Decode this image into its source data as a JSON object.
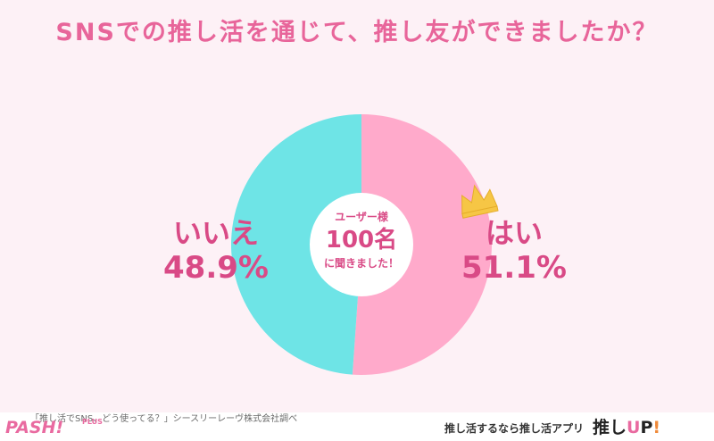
{
  "title": "SNSでの推し活を通じて、推し友ができましたか？",
  "chart_data": {
    "type": "pie",
    "donut": true,
    "slices": [
      {
        "label": "はい",
        "value": 51.1,
        "display": "51.1%",
        "color": "#ffaacb"
      },
      {
        "label": "いいえ",
        "value": 48.9,
        "display": "48.9%",
        "color": "#6ee4e6"
      }
    ],
    "center": {
      "sub": "ユーザー様",
      "count": "100名",
      "foot": "に聞きました！"
    }
  },
  "crown_icon": "crown-icon",
  "footer": {
    "note": "「推し活でSNS、どう使ってる？」シースリーレーヴ株式会社調べ",
    "logo_left": "PASH!",
    "logo_left_plus": "PLUS",
    "tagline": "推し活するなら推し活アプリ",
    "brand_a": "推し",
    "brand_b": "U",
    "brand_c": "P",
    "brand_d": "!"
  }
}
